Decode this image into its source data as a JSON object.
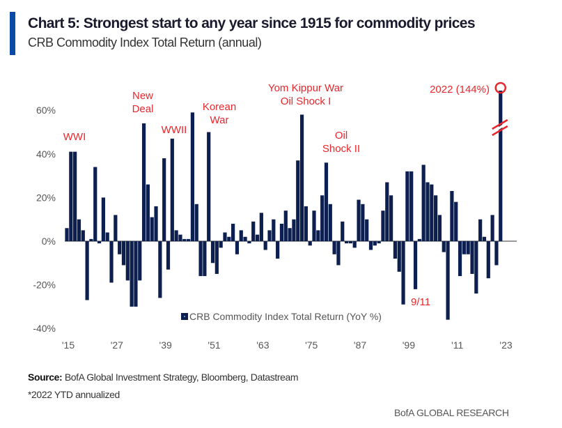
{
  "header": {
    "title": "Chart 5: Strongest start to any year since 1915 for commodity prices",
    "subtitle": "CRB Commodity Index Total Return (annual)"
  },
  "footer": {
    "source_label": "Source:",
    "source_text": "BofA Global Investment Strategy, Bloomberg, Datastream",
    "footnote": "*2022 YTD annualized",
    "brand": "BofA GLOBAL RESEARCH"
  },
  "colors": {
    "bar": "#0d1f4f",
    "annotation": "#e8262b",
    "accent": "#0b4aa8",
    "axis_text": "#555555"
  },
  "chart_data": {
    "type": "bar",
    "title": "Chart 5: Strongest start to any year since 1915 for commodity prices",
    "subtitle": "CRB Commodity Index Total Return (annual)",
    "xlabel": "",
    "ylabel": "",
    "ylim": [
      -40,
      70
    ],
    "yticks": [
      60,
      40,
      20,
      0,
      -20,
      -40
    ],
    "ytick_labels": [
      "60%",
      "40%",
      "20%",
      "0%",
      "-20%",
      "-40%"
    ],
    "xticks": [
      1915,
      1927,
      1939,
      1951,
      1963,
      1975,
      1987,
      1999,
      2011,
      2023
    ],
    "xtick_labels": [
      "'15",
      "'27",
      "'39",
      "'51",
      "'63",
      "'75",
      "'87",
      "'99",
      "'11",
      "'23"
    ],
    "legend": {
      "label": "CRB Commodity Index Total Return (YoY %)",
      "position": "bottom-center"
    },
    "grid": false,
    "axis_break": {
      "year": 2022,
      "note": "bar truncated; actual value 144%"
    },
    "series": [
      {
        "name": "CRB Commodity Index Total Return (YoY %)",
        "x": [
          1915,
          1916,
          1917,
          1918,
          1919,
          1920,
          1921,
          1922,
          1923,
          1924,
          1925,
          1926,
          1927,
          1928,
          1929,
          1930,
          1931,
          1932,
          1933,
          1934,
          1935,
          1936,
          1937,
          1938,
          1939,
          1940,
          1941,
          1942,
          1943,
          1944,
          1945,
          1946,
          1947,
          1948,
          1949,
          1950,
          1951,
          1952,
          1953,
          1954,
          1955,
          1956,
          1957,
          1958,
          1959,
          1960,
          1961,
          1962,
          1963,
          1964,
          1965,
          1966,
          1967,
          1968,
          1969,
          1970,
          1971,
          1972,
          1973,
          1974,
          1975,
          1976,
          1977,
          1978,
          1979,
          1980,
          1981,
          1982,
          1983,
          1984,
          1985,
          1986,
          1987,
          1988,
          1989,
          1990,
          1991,
          1992,
          1993,
          1994,
          1995,
          1996,
          1997,
          1998,
          1999,
          2000,
          2001,
          2002,
          2003,
          2004,
          2005,
          2006,
          2007,
          2008,
          2009,
          2010,
          2011,
          2012,
          2013,
          2014,
          2015,
          2016,
          2017,
          2018,
          2019,
          2020,
          2021,
          2022
        ],
        "values": [
          6,
          41,
          41,
          10,
          5,
          -27,
          1,
          34,
          -1,
          20,
          4,
          -19,
          12,
          -6,
          -11,
          -18,
          -30,
          -30,
          -18,
          54,
          26,
          11,
          16,
          -26,
          38,
          -13,
          47,
          5,
          3,
          1,
          1,
          59,
          17,
          -16,
          -16,
          50,
          -10,
          -15,
          -3,
          4,
          2,
          8,
          -6,
          5,
          2,
          -1,
          9,
          3,
          13,
          -4,
          5,
          10,
          -8,
          8,
          14,
          6,
          10,
          37,
          58,
          16,
          -2,
          14,
          5,
          21,
          36,
          17,
          -6,
          -11,
          9,
          -1,
          -1,
          -3,
          19,
          17,
          10,
          -4,
          -2,
          -1,
          14,
          27,
          21,
          -8,
          -14,
          -29,
          32,
          32,
          -22,
          1,
          35,
          27,
          26,
          21,
          12,
          -5,
          -36,
          23,
          18,
          -16,
          -6,
          -6,
          -15,
          -24,
          10,
          2,
          -17,
          12,
          -11,
          144
        ]
      }
    ],
    "annotations": [
      {
        "text": "WWI",
        "year": 1916
      },
      {
        "text": "New Deal",
        "year": 1933
      },
      {
        "text": "WWII",
        "year": 1941
      },
      {
        "text": "Korean War",
        "year": 1950
      },
      {
        "text": "Yom Kippur War Oil Shock I",
        "year": 1973
      },
      {
        "text": "Oil Shock II",
        "year": 1979
      },
      {
        "text": "9/11",
        "year": 2001
      },
      {
        "text": "2022 (144%)",
        "year": 2022
      }
    ]
  }
}
